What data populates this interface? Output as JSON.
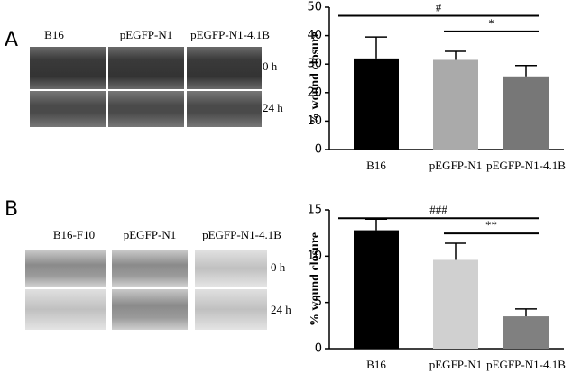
{
  "panels": [
    {
      "label": "A",
      "columns": [
        "B16",
        "pEGFP-N1",
        "pEGFP-N1-4.1B"
      ],
      "rows": [
        "0 h",
        "24 h"
      ]
    },
    {
      "label": "B",
      "columns": [
        "B16-F10",
        "pEGFP-N1",
        "pEGFP-N1-4.1B"
      ],
      "rows": [
        "0 h",
        "24 h"
      ]
    }
  ],
  "chart_data": [
    {
      "type": "bar",
      "y_label": "% wound closure",
      "categories": [
        "B16",
        "pEGFP-N1",
        "pEGFP-N1-4.1B"
      ],
      "values": [
        32,
        31.5,
        25.7
      ],
      "errors": [
        7.5,
        3,
        3.8
      ],
      "colors": [
        "#000000",
        "#aaaaaa",
        "#777777"
      ],
      "ylim": [
        0,
        50
      ],
      "yticks": [
        0,
        10,
        20,
        30,
        40,
        50
      ],
      "annotations": [
        "#",
        "*"
      ]
    },
    {
      "type": "bar",
      "y_label": "% wound closure",
      "categories": [
        "B16",
        "pEGFP-N1",
        "pEGFP-N1-4.1B"
      ],
      "values": [
        12.8,
        9.6,
        3.5
      ],
      "errors": [
        1.2,
        1.8,
        0.8
      ],
      "colors": [
        "#000000",
        "#d0d0d0",
        "#808080"
      ],
      "ylim": [
        0,
        15
      ],
      "yticks": [
        0,
        5,
        10,
        15
      ],
      "annotations": [
        "###",
        "**"
      ]
    }
  ]
}
